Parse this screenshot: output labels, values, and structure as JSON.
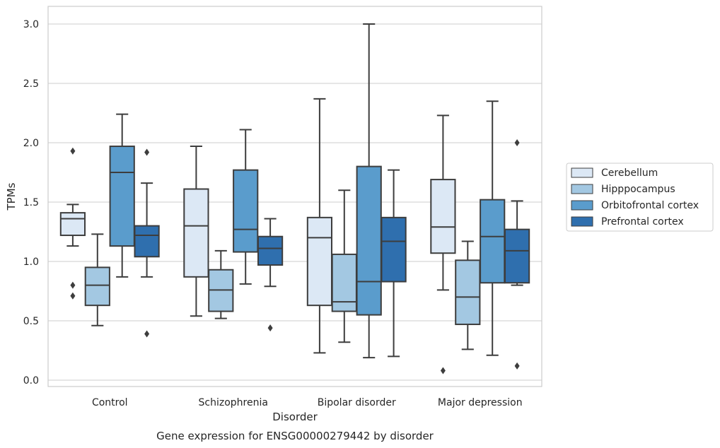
{
  "chart_data": {
    "type": "box",
    "title": "",
    "caption": "Gene expression for ENSG00000279442 by disorder",
    "xlabel": "Disorder",
    "ylabel": "TPMs",
    "ylim": [
      -0.05,
      3.15
    ],
    "yticks": [
      0.0,
      0.5,
      1.0,
      1.5,
      2.0,
      2.5,
      3.0
    ],
    "ytick_labels": [
      "0.0",
      "0.5",
      "1.0",
      "1.5",
      "2.0",
      "2.5",
      "3.0"
    ],
    "grid": "horizontal",
    "legend_position": "right",
    "categories": [
      "Control",
      "Schizophrenia",
      "Bipolar disorder",
      "Major depression"
    ],
    "series": [
      {
        "name": "Cerebellum",
        "color": "#dce8f5",
        "boxes": [
          {
            "whisker_low": 1.13,
            "q1": 1.22,
            "median": 1.36,
            "q3": 1.41,
            "whisker_high": 1.48,
            "outliers": [
              1.93,
              0.8,
              0.71
            ]
          },
          {
            "whisker_low": 0.54,
            "q1": 0.87,
            "median": 1.3,
            "q3": 1.61,
            "whisker_high": 1.97,
            "outliers": []
          },
          {
            "whisker_low": 0.23,
            "q1": 0.63,
            "median": 1.2,
            "q3": 1.37,
            "whisker_high": 2.37,
            "outliers": []
          },
          {
            "whisker_low": 0.76,
            "q1": 1.07,
            "median": 1.29,
            "q3": 1.69,
            "whisker_high": 2.23,
            "outliers": [
              0.08
            ]
          }
        ]
      },
      {
        "name": "Hipppocampus",
        "color": "#a3c8e2",
        "boxes": [
          {
            "whisker_low": 0.46,
            "q1": 0.63,
            "median": 0.8,
            "q3": 0.95,
            "whisker_high": 1.23,
            "outliers": []
          },
          {
            "whisker_low": 0.52,
            "q1": 0.58,
            "median": 0.76,
            "q3": 0.93,
            "whisker_high": 1.09,
            "outliers": []
          },
          {
            "whisker_low": 0.32,
            "q1": 0.58,
            "median": 0.66,
            "q3": 1.06,
            "whisker_high": 1.6,
            "outliers": []
          },
          {
            "whisker_low": 0.26,
            "q1": 0.47,
            "median": 0.7,
            "q3": 1.01,
            "whisker_high": 1.17,
            "outliers": []
          }
        ]
      },
      {
        "name": "Orbitofrontal cortex",
        "color": "#5a9ccc",
        "boxes": [
          {
            "whisker_low": 0.87,
            "q1": 1.13,
            "median": 1.75,
            "q3": 1.97,
            "whisker_high": 2.24,
            "outliers": []
          },
          {
            "whisker_low": 0.81,
            "q1": 1.08,
            "median": 1.27,
            "q3": 1.77,
            "whisker_high": 2.11,
            "outliers": []
          },
          {
            "whisker_low": 0.19,
            "q1": 0.55,
            "median": 0.83,
            "q3": 1.8,
            "whisker_high": 3.0,
            "outliers": []
          },
          {
            "whisker_low": 0.21,
            "q1": 0.82,
            "median": 1.21,
            "q3": 1.52,
            "whisker_high": 2.35,
            "outliers": []
          }
        ]
      },
      {
        "name": "Prefrontal cortex",
        "color": "#2f6fae",
        "boxes": [
          {
            "whisker_low": 0.87,
            "q1": 1.04,
            "median": 1.22,
            "q3": 1.3,
            "whisker_high": 1.66,
            "outliers": [
              1.92,
              0.39
            ]
          },
          {
            "whisker_low": 0.79,
            "q1": 0.97,
            "median": 1.11,
            "q3": 1.21,
            "whisker_high": 1.36,
            "outliers": [
              0.44
            ]
          },
          {
            "whisker_low": 0.2,
            "q1": 0.83,
            "median": 1.17,
            "q3": 1.37,
            "whisker_high": 1.77,
            "outliers": []
          },
          {
            "whisker_low": 0.8,
            "q1": 0.82,
            "median": 1.09,
            "q3": 1.27,
            "whisker_high": 1.51,
            "outliers": [
              2.0,
              0.12
            ]
          }
        ]
      }
    ]
  }
}
